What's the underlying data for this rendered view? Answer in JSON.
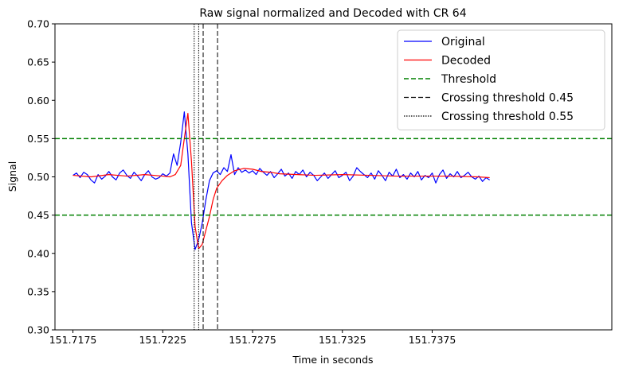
{
  "chart_data": {
    "type": "line",
    "title": "Raw signal normalized and Decoded with CR 64",
    "xlabel": "Time in seconds",
    "ylabel": "Signal",
    "xlim": [
      151.7165,
      151.7475
    ],
    "ylim": [
      0.3,
      0.7
    ],
    "xticks": [
      151.7175,
      151.7225,
      151.7275,
      151.7325,
      151.7375
    ],
    "xtick_labels": [
      "151.7175",
      "151.7225",
      "151.7275",
      "151.7325",
      "151.7375"
    ],
    "yticks": [
      0.3,
      0.35,
      0.4,
      0.45,
      0.5,
      0.55,
      0.6,
      0.65,
      0.7
    ],
    "ytick_labels": [
      "0.30",
      "0.35",
      "0.40",
      "0.45",
      "0.50",
      "0.55",
      "0.60",
      "0.65",
      "0.70"
    ],
    "grid": false,
    "legend_position": "top-right",
    "series": [
      {
        "name": "Original",
        "color": "#0000ff",
        "style": "solid",
        "x": [
          151.7175,
          151.7177,
          151.7179,
          151.7181,
          151.7183,
          151.7185,
          151.7187,
          151.7189,
          151.7191,
          151.7193,
          151.7195,
          151.7197,
          151.7199,
          151.7201,
          151.7203,
          151.7205,
          151.7207,
          151.7209,
          151.7211,
          151.7213,
          151.7215,
          151.7217,
          151.7219,
          151.7221,
          151.7223,
          151.7225,
          151.7227,
          151.7229,
          151.7231,
          151.7233,
          151.7235,
          151.7237,
          151.7239,
          151.7241,
          151.7243,
          151.7245,
          151.7247,
          151.7249,
          151.7251,
          151.7253,
          151.7255,
          151.7257,
          151.7259,
          151.7261,
          151.7263,
          151.7265,
          151.7267,
          151.7269,
          151.7271,
          151.7273,
          151.7275,
          151.7277,
          151.7279,
          151.7281,
          151.7283,
          151.7285,
          151.7287,
          151.7289,
          151.7291,
          151.7293,
          151.7295,
          151.7297,
          151.7299,
          151.7301,
          151.7303,
          151.7305,
          151.7307,
          151.7309,
          151.7311,
          151.7313,
          151.7315,
          151.7317,
          151.7319,
          151.7321,
          151.7323,
          151.7325,
          151.7327,
          151.7329,
          151.7331,
          151.7333,
          151.7335,
          151.7337,
          151.7339,
          151.7341,
          151.7343,
          151.7345,
          151.7347,
          151.7349,
          151.7351,
          151.7353,
          151.7355,
          151.7357,
          151.7359,
          151.7361,
          151.7363,
          151.7365,
          151.7367,
          151.7369,
          151.7371,
          151.7373,
          151.7375,
          151.7377,
          151.7379,
          151.7381,
          151.7383,
          151.7385,
          151.7387,
          151.7389,
          151.7391,
          151.7393,
          151.7395,
          151.7397,
          151.7399,
          151.7401,
          151.7403,
          151.7405,
          151.7407
        ],
        "y": [
          0.502,
          0.505,
          0.499,
          0.506,
          0.503,
          0.496,
          0.492,
          0.503,
          0.497,
          0.501,
          0.507,
          0.5,
          0.496,
          0.505,
          0.509,
          0.502,
          0.498,
          0.506,
          0.501,
          0.495,
          0.503,
          0.508,
          0.5,
          0.497,
          0.499,
          0.504,
          0.501,
          0.505,
          0.53,
          0.515,
          0.545,
          0.585,
          0.53,
          0.44,
          0.405,
          0.418,
          0.44,
          0.47,
          0.495,
          0.505,
          0.508,
          0.503,
          0.512,
          0.507,
          0.529,
          0.503,
          0.512,
          0.506,
          0.509,
          0.505,
          0.508,
          0.503,
          0.511,
          0.506,
          0.502,
          0.507,
          0.499,
          0.504,
          0.51,
          0.501,
          0.505,
          0.498,
          0.507,
          0.503,
          0.509,
          0.5,
          0.506,
          0.502,
          0.495,
          0.5,
          0.505,
          0.498,
          0.503,
          0.508,
          0.499,
          0.502,
          0.506,
          0.495,
          0.501,
          0.512,
          0.507,
          0.503,
          0.499,
          0.505,
          0.497,
          0.508,
          0.502,
          0.495,
          0.506,
          0.501,
          0.51,
          0.499,
          0.503,
          0.497,
          0.505,
          0.5,
          0.507,
          0.496,
          0.502,
          0.499,
          0.505,
          0.492,
          0.503,
          0.509,
          0.498,
          0.504,
          0.5,
          0.507,
          0.499,
          0.502,
          0.506,
          0.5,
          0.497,
          0.501,
          0.494,
          0.499,
          0.496
        ]
      },
      {
        "name": "Decoded",
        "color": "#ff0000",
        "style": "solid",
        "x": [
          151.7175,
          151.7185,
          151.7195,
          151.7205,
          151.7215,
          151.7225,
          151.7229,
          151.7232,
          151.7235,
          151.7237,
          151.7239,
          151.7241,
          151.7243,
          151.7245,
          151.7247,
          151.7249,
          151.7251,
          151.7253,
          151.7255,
          151.7258,
          151.7261,
          151.7265,
          151.727,
          151.7275,
          151.728,
          151.7285,
          151.729,
          151.73,
          151.731,
          151.7325,
          151.734,
          151.7355,
          151.737,
          151.7385,
          151.74,
          151.7407
        ],
        "y": [
          0.502,
          0.5,
          0.503,
          0.501,
          0.503,
          0.501,
          0.5,
          0.503,
          0.515,
          0.55,
          0.583,
          0.52,
          0.435,
          0.406,
          0.412,
          0.43,
          0.448,
          0.47,
          0.485,
          0.495,
          0.502,
          0.508,
          0.511,
          0.51,
          0.507,
          0.506,
          0.504,
          0.503,
          0.502,
          0.503,
          0.502,
          0.501,
          0.501,
          0.501,
          0.5,
          0.499
        ]
      }
    ],
    "reference_lines": [
      {
        "kind": "horizontal",
        "value": 0.55,
        "name": "Threshold",
        "color": "#008000",
        "style": "dashed"
      },
      {
        "kind": "horizontal",
        "value": 0.45,
        "name": "Threshold",
        "color": "#008000",
        "style": "dashed"
      },
      {
        "kind": "vertical",
        "value": 151.72475,
        "name": "Crossing threshold 0.45",
        "color": "#000000",
        "style": "dashed"
      },
      {
        "kind": "vertical",
        "value": 151.72555,
        "name": "Crossing threshold 0.55",
        "color": "#000000",
        "style": "dashed"
      },
      {
        "kind": "vertical",
        "value": 151.72425,
        "name": "Crossing threshold 0.45",
        "color": "#000000",
        "style": "dotted"
      },
      {
        "kind": "vertical",
        "value": 151.7245,
        "name": "Crossing threshold 0.55",
        "color": "#000000",
        "style": "dotted"
      }
    ],
    "legend": [
      {
        "label": "Original",
        "color": "#0000ff",
        "style": "solid"
      },
      {
        "label": "Decoded",
        "color": "#ff0000",
        "style": "solid"
      },
      {
        "label": "Threshold",
        "color": "#008000",
        "style": "dashed"
      },
      {
        "label": "Crossing threshold 0.45",
        "color": "#000000",
        "style": "dashed"
      },
      {
        "label": "Crossing threshold 0.55",
        "color": "#000000",
        "style": "dotted"
      }
    ]
  }
}
